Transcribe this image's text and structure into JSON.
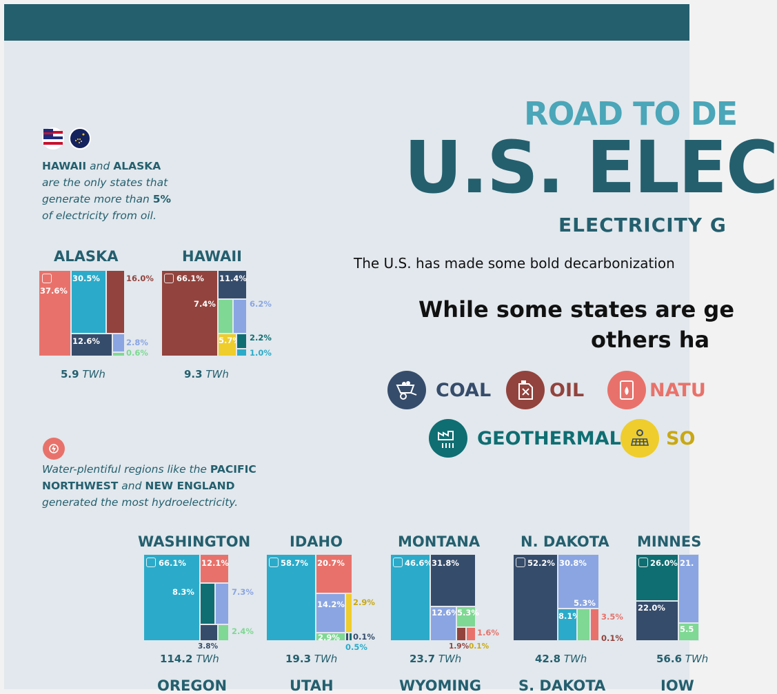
{
  "header": {
    "kicker": "ROAD TO DE",
    "title": "U.S. ELEC",
    "subtitle": "ELECTRICITY G",
    "intro": "The U.S. has made some bold decarbonization",
    "headline_line1": "While some states are ge",
    "headline_line2": "others ha"
  },
  "legend": [
    {
      "label": "COAL",
      "color": "#364c6b",
      "icon": "wheelbarrow-coal-icon"
    },
    {
      "label": "OIL",
      "color": "#92433d",
      "icon": "oil-canister-icon"
    },
    {
      "label": "NATU",
      "color": "#e8726b",
      "icon": "gas-barrel-icon"
    },
    {
      "label": "GEOTHERMAL",
      "color": "#0f6e72",
      "icon": "geothermal-plant-icon"
    },
    {
      "label": "SO",
      "color": "#efcd2c",
      "icon": "solar-panel-icon"
    }
  ],
  "oil_note": {
    "state1": "HAWAII",
    "and_word": "and",
    "state2": "ALASKA",
    "rest1": "are the only states that generate more than",
    "pct": "5%",
    "rest2": "of electricity from oil."
  },
  "hydro_note": {
    "intro": "Water-plentiful regions like the",
    "region1": "PACIFIC NORTHWEST",
    "and_word": "and",
    "region2": "NEW ENGLAND",
    "rest": "generated the most hydroelectricity."
  },
  "unit": "TWh",
  "colors": {
    "coal": "#364c6b",
    "oil": "#92433d",
    "gas": "#e8726b",
    "hydro": "#2babc9",
    "wind": "#8aa5e2",
    "geothermal": "#0f6e72",
    "solar": "#efcd2c",
    "biomass": "#7fd893"
  },
  "states_top": [
    {
      "name": "ALASKA",
      "total": "5.9"
    },
    {
      "name": "HAWAII",
      "total": "9.3"
    }
  ],
  "states_row": [
    {
      "name": "WASHINGTON",
      "total": "114.2"
    },
    {
      "name": "IDAHO",
      "total": "19.3"
    },
    {
      "name": "MONTANA",
      "total": "23.7"
    },
    {
      "name": "N. DAKOTA",
      "total": "42.8"
    },
    {
      "name": "MINNES",
      "total": "56.6"
    }
  ],
  "states_next_row": [
    "OREGON",
    "UTAH",
    "WYOMING",
    "S. DAKOTA",
    "IOW"
  ],
  "percentages": {
    "alaska": [
      "37.6%",
      "30.5%",
      "16.0%",
      "12.6%",
      "2.8%",
      "0.6%"
    ],
    "hawaii": [
      "66.1%",
      "11.4%",
      "7.4%",
      "6.2%",
      "5.7%",
      "2.2%",
      "1.0%"
    ],
    "washington": [
      "66.1%",
      "12.1%",
      "8.3%",
      "7.3%",
      "2.4%",
      "3.8%"
    ],
    "idaho": [
      "58.7%",
      "20.7%",
      "14.2%",
      "2.9%",
      "2.9%",
      "0.1%",
      "0.5%"
    ],
    "montana": [
      "46.6%",
      "31.8%",
      "12.6%",
      "5.3%",
      "1.6%",
      "1.9%",
      "0.1%"
    ],
    "ndakota": [
      "52.2%",
      "30.8%",
      "5.3%",
      "8.1%",
      "3.5%",
      "0.1%"
    ],
    "minnesota": [
      "26.0%",
      "21.",
      "22.0%",
      "5.5"
    ]
  }
}
